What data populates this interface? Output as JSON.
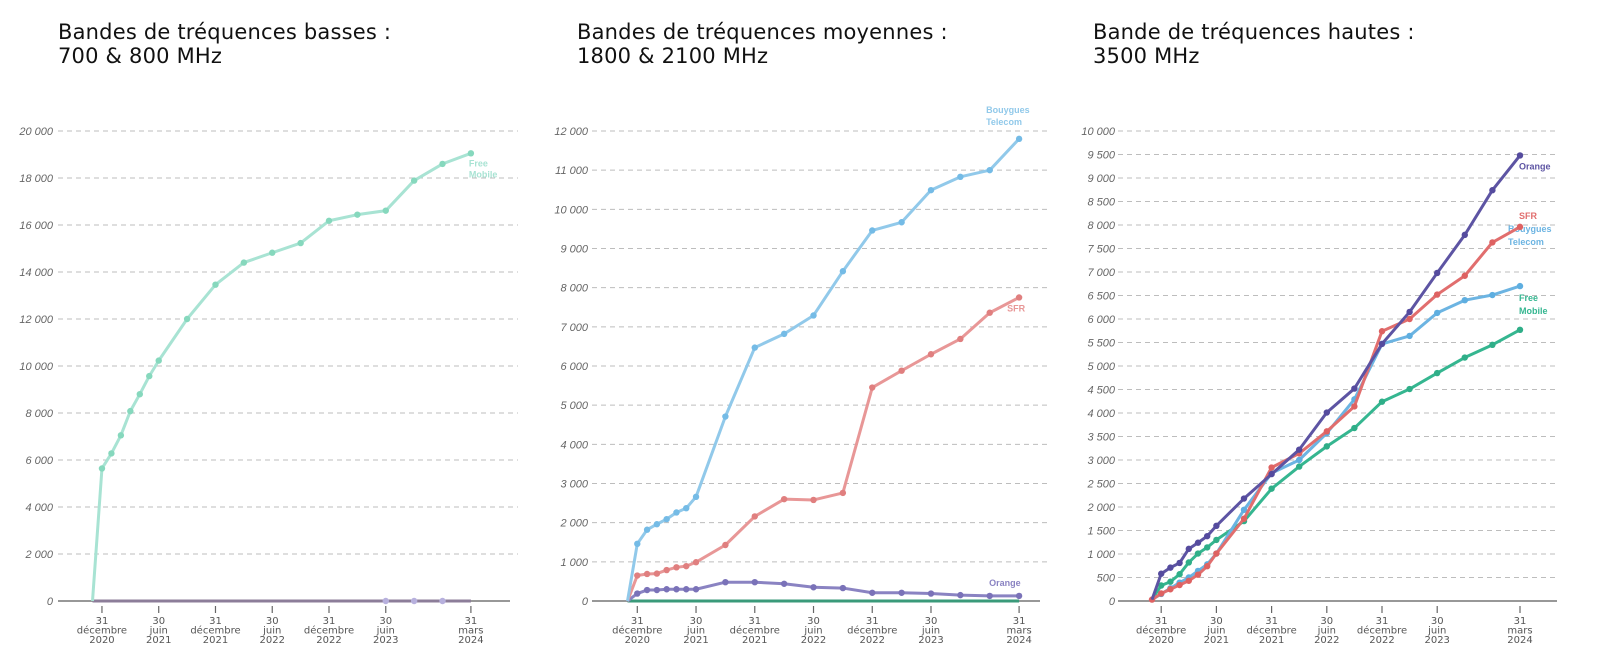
{
  "charts": [
    {
      "title_line1": "Bandes de tréquences basses :",
      "title_line2": "700 & 800 MHz",
      "chart_data": {
        "type": "line",
        "ylim": [
          0,
          20000
        ],
        "y_ticks": [
          0,
          2000,
          4000,
          6000,
          8000,
          10000,
          12000,
          14000,
          16000,
          18000,
          20000
        ],
        "y_tick_labels": [
          "0",
          "2 000",
          "4 000",
          "6 000",
          "8 000",
          "10 000",
          "12 000",
          "14 000",
          "16 000",
          "18 000",
          "20 000"
        ],
        "x_ticks": [
          "2020-12-31",
          "2021-06-30",
          "2021-12-31",
          "2022-06-30",
          "2022-12-31",
          "2023-06-30",
          "2024-03-31"
        ],
        "x_tick_labels": [
          [
            "31",
            "décembre",
            "2020"
          ],
          [
            "30",
            "juin",
            "2021"
          ],
          [
            "31",
            "décembre",
            "2021"
          ],
          [
            "30",
            "juin",
            "2022"
          ],
          [
            "31",
            "décembre",
            "2022"
          ],
          [
            "30",
            "juin",
            "2023"
          ],
          [
            "31",
            "mars",
            "2024"
          ]
        ],
        "grid": true,
        "series": [
          {
            "name": "",
            "color": "#8c7d99",
            "dot_color": "#b7b0dd",
            "dots_from": 1,
            "x": [
              "2020-11-30",
              "2023-06-30",
              "2023-09-30",
              "2023-12-31",
              "2024-03-31"
            ],
            "values": [
              0,
              0,
              0,
              0,
              0
            ],
            "end_dot": false
          },
          {
            "name": "Free Mobile",
            "color": "#a8e3d3",
            "dot_color": "#86d8bd",
            "dots_from": 1,
            "x": [
              "2020-11-30",
              "2020-12-31",
              "2021-01-31",
              "2021-02-28",
              "2021-03-31",
              "2021-04-30",
              "2021-05-31",
              "2021-06-30",
              "2021-09-30",
              "2021-12-31",
              "2022-03-31",
              "2022-06-30",
              "2022-09-30",
              "2022-12-31",
              "2023-03-31",
              "2023-06-30",
              "2023-09-30",
              "2023-12-31",
              "2024-03-31"
            ],
            "values": [
              0,
              5640,
              6280,
              7050,
              8080,
              8800,
              9570,
              10230,
              12000,
              13460,
              14400,
              14820,
              15230,
              16180,
              16440,
              16610,
              17890,
              18600,
              19050
            ]
          }
        ]
      }
    },
    {
      "title_line1": "Bandes de tréquences moyennes :",
      "title_line2": "1800 & 2100 MHz",
      "chart_data": {
        "type": "line",
        "ylim": [
          0,
          12000
        ],
        "y_ticks": [
          0,
          1000,
          2000,
          3000,
          4000,
          5000,
          6000,
          7000,
          8000,
          9000,
          10000,
          11000,
          12000
        ],
        "y_tick_labels": [
          "0",
          "1 000",
          "2 000",
          "3 000",
          "4 000",
          "5 000",
          "6 000",
          "7 000",
          "8 000",
          "9 000",
          "10 000",
          "11 000",
          "12 000"
        ],
        "x_ticks": [
          "2020-12-31",
          "2021-06-30",
          "2021-12-31",
          "2022-06-30",
          "2022-12-31",
          "2023-06-30",
          "2024-03-31"
        ],
        "x_tick_labels": [
          [
            "31",
            "décembre",
            "2020"
          ],
          [
            "30",
            "juin",
            "2021"
          ],
          [
            "31",
            "décembre",
            "2021"
          ],
          [
            "30",
            "juin",
            "2022"
          ],
          [
            "31",
            "décembre",
            "2022"
          ],
          [
            "30",
            "juin",
            "2023"
          ],
          [
            "31",
            "mars",
            "2024"
          ]
        ],
        "grid": true,
        "series": [
          {
            "name": "",
            "color": "#3a9a7a",
            "dot_color": "#3a9a7a",
            "dots_from": 99,
            "x": [
              "2020-11-30",
              "2024-03-31"
            ],
            "values": [
              0,
              0
            ]
          },
          {
            "name": "Orange",
            "color": "#8a83c2",
            "dot_color": "#7a72b8",
            "dots_from": 1,
            "x": [
              "2020-11-30",
              "2020-12-31",
              "2021-01-31",
              "2021-02-28",
              "2021-03-31",
              "2021-04-30",
              "2021-05-31",
              "2021-06-30",
              "2021-09-30",
              "2021-12-31",
              "2022-03-31",
              "2022-06-30",
              "2022-09-30",
              "2022-12-31",
              "2023-03-31",
              "2023-06-30",
              "2023-09-30",
              "2023-12-31",
              "2024-03-31"
            ],
            "values": [
              0,
              190,
              280,
              280,
              300,
              300,
              300,
              300,
              480,
              480,
              440,
              350,
              330,
              210,
              210,
              190,
              150,
              130,
              130
            ]
          },
          {
            "name": "SFR",
            "color": "#e89797",
            "dot_color": "#e07f7f",
            "dots_from": 1,
            "x": [
              "2020-11-30",
              "2020-12-31",
              "2021-01-31",
              "2021-02-28",
              "2021-03-31",
              "2021-04-30",
              "2021-05-31",
              "2021-06-30",
              "2021-09-30",
              "2021-12-31",
              "2022-03-31",
              "2022-06-30",
              "2022-09-30",
              "2022-12-31",
              "2023-03-31",
              "2023-06-30",
              "2023-09-30",
              "2023-12-31",
              "2024-03-31"
            ],
            "values": [
              0,
              650,
              690,
              700,
              790,
              860,
              890,
              990,
              1430,
              2160,
              2600,
              2580,
              2760,
              5450,
              5880,
              6300,
              6690,
              7360,
              7750
            ]
          },
          {
            "name": "Bouygues Telecom",
            "color": "#91c9ea",
            "dot_color": "#74bbe6",
            "dots_from": 1,
            "x": [
              "2020-11-30",
              "2020-12-31",
              "2021-01-31",
              "2021-02-28",
              "2021-03-31",
              "2021-04-30",
              "2021-05-31",
              "2021-06-30",
              "2021-09-30",
              "2021-12-31",
              "2022-03-31",
              "2022-06-30",
              "2022-09-30",
              "2022-12-31",
              "2023-03-31",
              "2023-06-30",
              "2023-09-30",
              "2023-12-31",
              "2024-03-31"
            ],
            "values": [
              0,
              1460,
              1820,
              1960,
              2090,
              2260,
              2370,
              2660,
              4710,
              6470,
              6820,
              7290,
              8420,
              9460,
              9670,
              10490,
              10830,
              11000,
              11800
            ]
          }
        ]
      }
    },
    {
      "title_line1": "Bande de tréquences hautes :",
      "title_line2": "3500 MHz",
      "chart_data": {
        "type": "line",
        "ylim": [
          0,
          10000
        ],
        "y_ticks": [
          0,
          500,
          1000,
          1500,
          2000,
          2500,
          3000,
          3500,
          4000,
          4500,
          5000,
          5500,
          6000,
          6500,
          7000,
          7500,
          8000,
          8500,
          9000,
          9500,
          10000
        ],
        "y_tick_labels": [
          "0",
          "500",
          "1 000",
          "1 500",
          "2 000",
          "2 500",
          "3 000",
          "3 500",
          "4 000",
          "4 500",
          "5 000",
          "5 500",
          "6 000",
          "6 500",
          "7 000",
          "7 500",
          "8 000",
          "8 500",
          "9 000",
          "9 500",
          "10 000"
        ],
        "x_ticks": [
          "2020-12-31",
          "2021-06-30",
          "2021-12-31",
          "2022-06-30",
          "2022-12-31",
          "2023-06-30",
          "2024-03-31"
        ],
        "x_tick_labels": [
          [
            "31",
            "décembre",
            "2020"
          ],
          [
            "30",
            "juin",
            "2021"
          ],
          [
            "31",
            "décembre",
            "2021"
          ],
          [
            "30",
            "juin",
            "2022"
          ],
          [
            "31",
            "décembre",
            "2022"
          ],
          [
            "30",
            "juin",
            "2023"
          ],
          [
            "31",
            "mars",
            "2024"
          ]
        ],
        "grid": true,
        "series": [
          {
            "name": "Free Mobile",
            "color": "#35b690",
            "dot_color": "#2fae88",
            "dots_from": 1,
            "x": [
              "2020-11-30",
              "2020-12-31",
              "2021-01-31",
              "2021-02-28",
              "2021-03-31",
              "2021-04-30",
              "2021-05-31",
              "2021-06-30",
              "2021-09-30",
              "2021-12-31",
              "2022-03-31",
              "2022-06-30",
              "2022-09-30",
              "2022-12-31",
              "2023-03-31",
              "2023-06-30",
              "2023-09-30",
              "2023-12-31",
              "2024-03-31"
            ],
            "values": [
              30,
              330,
              410,
              570,
              820,
              1010,
              1140,
              1300,
              1700,
              2390,
              2860,
              3290,
              3680,
              4240,
              4510,
              4850,
              5180,
              5450,
              5770
            ]
          },
          {
            "name": "Bouygues Telecom",
            "color": "#6cb4e2",
            "dot_color": "#5eaee0",
            "dots_from": 1,
            "x": [
              "2020-11-30",
              "2020-12-31",
              "2021-01-31",
              "2021-02-28",
              "2021-03-31",
              "2021-04-30",
              "2021-05-31",
              "2021-06-30",
              "2021-09-30",
              "2021-12-31",
              "2022-03-31",
              "2022-06-30",
              "2022-09-30",
              "2022-12-31",
              "2023-03-31",
              "2023-06-30",
              "2023-09-30",
              "2023-12-31",
              "2024-03-31"
            ],
            "values": [
              30,
              150,
              270,
              390,
              500,
              640,
              780,
              1010,
              1940,
              2720,
              3000,
              3570,
              4290,
              5470,
              5640,
              6130,
              6400,
              6510,
              6700
            ]
          },
          {
            "name": "SFR",
            "color": "#e16e6e",
            "dot_color": "#de6262",
            "dots_from": 0,
            "x": [
              "2020-11-30",
              "2020-12-31",
              "2021-01-31",
              "2021-02-28",
              "2021-03-31",
              "2021-04-30",
              "2021-05-31",
              "2021-06-30",
              "2021-09-30",
              "2021-12-31",
              "2022-03-31",
              "2022-06-30",
              "2022-09-30",
              "2022-12-31",
              "2023-03-31",
              "2023-06-30",
              "2023-09-30",
              "2023-12-31",
              "2024-03-31"
            ],
            "values": [
              30,
              160,
              250,
              340,
              430,
              560,
              740,
              1010,
              1750,
              2840,
              3140,
              3610,
              4140,
              5740,
              6000,
              6520,
              6920,
              7630,
              7960
            ]
          },
          {
            "name": "Orange",
            "color": "#5d54a3",
            "dot_color": "#554b9e",
            "dots_from": 1,
            "x": [
              "2020-11-30",
              "2020-12-31",
              "2021-01-31",
              "2021-02-28",
              "2021-03-31",
              "2021-04-30",
              "2021-05-31",
              "2021-06-30",
              "2021-09-30",
              "2021-12-31",
              "2022-03-31",
              "2022-06-30",
              "2022-09-30",
              "2022-12-31",
              "2023-03-31",
              "2023-06-30",
              "2023-09-30",
              "2023-12-31",
              "2024-03-31"
            ],
            "values": [
              30,
              580,
              710,
              810,
              1110,
              1240,
              1380,
              1600,
              2180,
              2700,
              3220,
              4010,
              4520,
              5470,
              6150,
              6980,
              7790,
              8740,
              9480
            ]
          }
        ]
      }
    }
  ]
}
